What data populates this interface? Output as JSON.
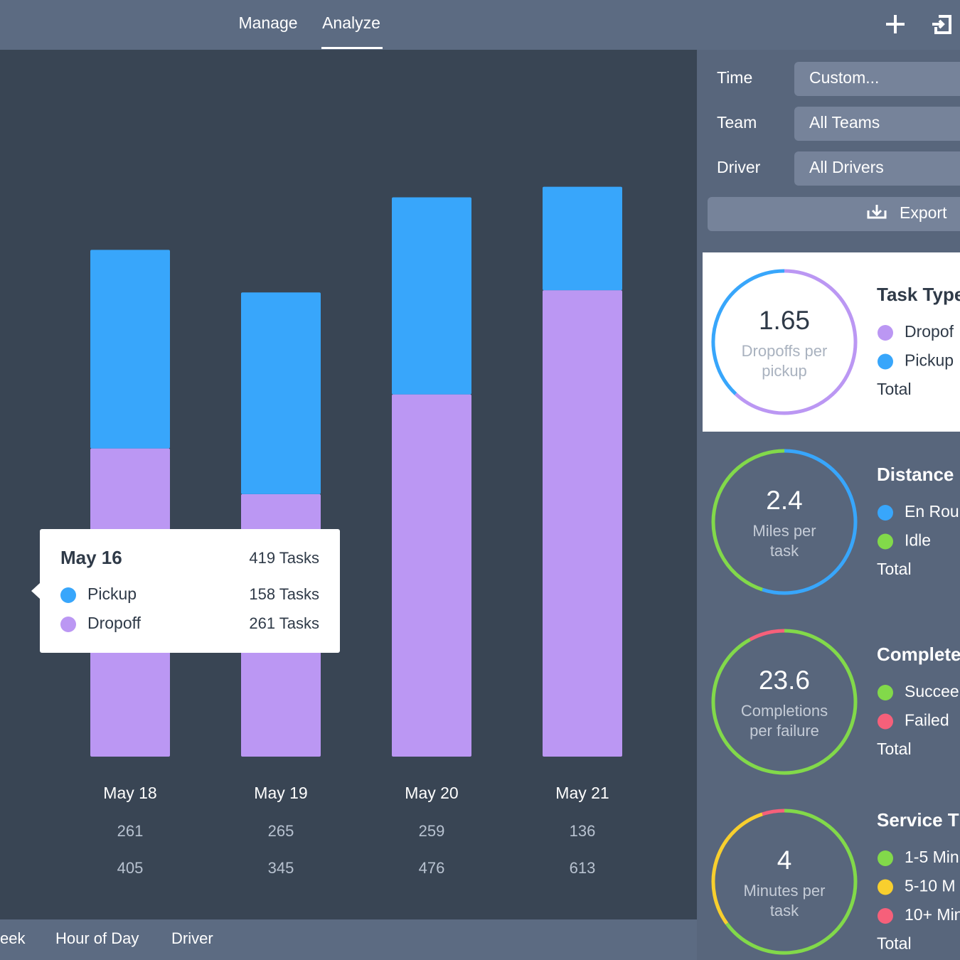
{
  "nav": {
    "tabs": [
      "Manage",
      "Analyze"
    ]
  },
  "chart_data": {
    "type": "bar",
    "stacked": true,
    "categories": [
      "May 18",
      "May 19",
      "May 20",
      "May 21"
    ],
    "series": [
      {
        "name": "Pickup",
        "color": "#38a6fb",
        "values": [
          261,
          265,
          259,
          136
        ]
      },
      {
        "name": "Dropoff",
        "color": "#bb97f3",
        "values": [
          405,
          345,
          476,
          613
        ]
      }
    ],
    "tooltip": {
      "title": "May 16",
      "total": "419 Tasks",
      "rows": [
        {
          "name": "Pickup",
          "color": "#38a6fb",
          "text": "158 Tasks"
        },
        {
          "name": "Dropoff",
          "color": "#bb97f3",
          "text": "261 Tasks"
        }
      ]
    }
  },
  "bottom_tabs": [
    "eek",
    "Hour of Day",
    "Driver"
  ],
  "filters": [
    {
      "label": "Time",
      "value": "Custom..."
    },
    {
      "label": "Team",
      "value": "All Teams"
    },
    {
      "label": "Driver",
      "value": "All Drivers"
    }
  ],
  "export": "Export",
  "cards": [
    {
      "metric": "1.65",
      "caption": [
        "Dropoffs per",
        "pickup"
      ],
      "title": "Task Type",
      "total": "Total",
      "segments": [
        {
          "name": "Dropof",
          "color": "#bb97f3",
          "value": 62
        },
        {
          "name": "Pickup",
          "color": "#38a6fb",
          "value": 38
        }
      ]
    },
    {
      "metric": "2.4",
      "caption": [
        "Miles per",
        "task"
      ],
      "title": "Distance",
      "total": "Total",
      "segments": [
        {
          "name": "En Rou",
          "color": "#38a6fb",
          "value": 55
        },
        {
          "name": "Idle",
          "color": "#82d94a",
          "value": 45
        }
      ]
    },
    {
      "metric": "23.6",
      "caption": [
        "Completions",
        "per failure"
      ],
      "title": "Complete",
      "total": "Total",
      "segments": [
        {
          "name": "Succee",
          "color": "#82d94a",
          "value": 92
        },
        {
          "name": "Failed",
          "color": "#f6607a",
          "value": 8
        }
      ]
    },
    {
      "metric": "4",
      "caption": [
        "Minutes per",
        "task"
      ],
      "title": "Service T",
      "total": "Total",
      "segments": [
        {
          "name": "1-5 Min",
          "color": "#82d94a",
          "value": 65
        },
        {
          "name": "5-10 M",
          "color": "#f8cf2e",
          "value": 30
        },
        {
          "name": "10+ Min",
          "color": "#f6607a",
          "value": 5
        }
      ]
    }
  ]
}
